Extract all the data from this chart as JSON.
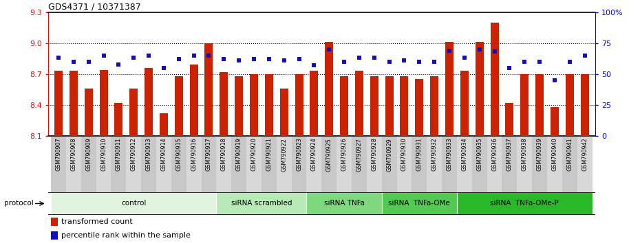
{
  "title": "GDS4371 / 10371387",
  "samples": [
    "GSM790907",
    "GSM790908",
    "GSM790909",
    "GSM790910",
    "GSM790911",
    "GSM790912",
    "GSM790913",
    "GSM790914",
    "GSM790915",
    "GSM790916",
    "GSM790917",
    "GSM790918",
    "GSM790919",
    "GSM790920",
    "GSM790921",
    "GSM790922",
    "GSM790923",
    "GSM790924",
    "GSM790925",
    "GSM790926",
    "GSM790927",
    "GSM790928",
    "GSM790929",
    "GSM790930",
    "GSM790931",
    "GSM790932",
    "GSM790933",
    "GSM790934",
    "GSM790935",
    "GSM790936",
    "GSM790937",
    "GSM790938",
    "GSM790939",
    "GSM790940",
    "GSM790941",
    "GSM790942"
  ],
  "red_values": [
    8.73,
    8.73,
    8.56,
    8.74,
    8.42,
    8.56,
    8.76,
    8.32,
    8.68,
    8.79,
    9.0,
    8.72,
    8.68,
    8.7,
    8.7,
    8.56,
    8.7,
    8.73,
    9.01,
    8.68,
    8.73,
    8.68,
    8.68,
    8.68,
    8.65,
    8.68,
    9.01,
    8.73,
    9.01,
    9.2,
    8.42,
    8.7,
    8.7,
    8.38,
    8.7,
    8.7
  ],
  "blue_values": [
    63,
    60,
    60,
    65,
    58,
    63,
    65,
    55,
    62,
    65,
    65,
    62,
    61,
    62,
    62,
    61,
    62,
    57,
    70,
    60,
    63,
    63,
    60,
    61,
    60,
    60,
    69,
    63,
    70,
    68,
    55,
    60,
    60,
    45,
    60,
    65
  ],
  "groups": [
    {
      "label": "control",
      "start": 0,
      "end": 10,
      "color": "#e0f4e0"
    },
    {
      "label": "siRNA scrambled",
      "start": 11,
      "end": 16,
      "color": "#b8eab8"
    },
    {
      "label": "siRNA TNFa",
      "start": 17,
      "end": 21,
      "color": "#7ed87e"
    },
    {
      "label": "siRNA  TNFa-OMe",
      "start": 22,
      "end": 26,
      "color": "#52ca52"
    },
    {
      "label": "siRNA  TNFa-OMe-P",
      "start": 27,
      "end": 35,
      "color": "#28b828"
    }
  ],
  "ymin": 8.1,
  "ymax": 9.3,
  "y2min": 0,
  "y2max": 100,
  "yticks": [
    8.1,
    8.4,
    8.7,
    9.0,
    9.3
  ],
  "y2ticks": [
    0,
    25,
    50,
    75,
    100
  ],
  "y2ticklabels": [
    "0",
    "25",
    "50",
    "75",
    "100%"
  ],
  "dotted_lines": [
    8.4,
    8.7,
    9.0
  ],
  "bar_color": "#cc2200",
  "dot_color": "#1111bb",
  "legend_items": [
    "transformed count",
    "percentile rank within the sample"
  ],
  "xtick_bg_even": "#c8c8c8",
  "xtick_bg_odd": "#d8d8d8"
}
